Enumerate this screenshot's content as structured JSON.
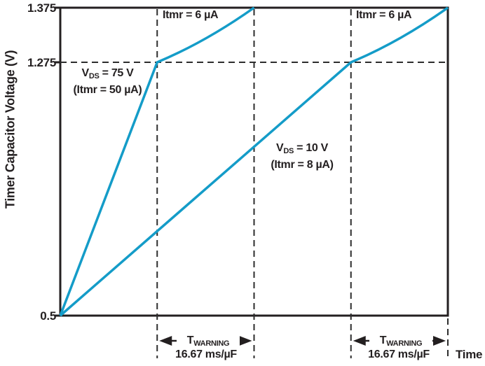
{
  "axes": {
    "y_title": "Timer Capacitor Voltage (V)",
    "x_title": "Time",
    "tick_top": "1.375",
    "tick_threshold": "1.275",
    "tick_bottom": "0.5"
  },
  "annotations": {
    "itmr6_left": "Itmr = 6 µA",
    "itmr6_right": "Itmr = 6 µA",
    "vds75": {
      "pre": "V",
      "sub": "DS",
      "post": " = 75 V",
      "line2": "(Itmr = 50 µA)"
    },
    "vds10": {
      "pre": "V",
      "sub": "DS",
      "post": " = 10 V",
      "line2": "(Itmr = 8 µA)"
    },
    "twarning_left": {
      "pre": "T",
      "sub": "WARNING",
      "rate": "16.67 ms/µF"
    },
    "twarning_right": {
      "pre": "T",
      "sub": "WARNING",
      "rate": "16.67 ms/µF"
    }
  },
  "colors": {
    "curve": "#149cc8",
    "axis": "#231f20",
    "dash": "#2d2d2d",
    "text": "#231f20",
    "background": "#ffffff"
  },
  "chart_data": {
    "type": "line",
    "title": "",
    "xlabel": "Time",
    "ylabel": "Timer Capacitor Voltage (V)",
    "x_unit": "divisions of 16.67 ms/µF",
    "xlim": [
      0,
      4
    ],
    "ylim": [
      0.5,
      1.375
    ],
    "y_ticks": [
      0.5,
      1.275,
      1.375
    ],
    "threshold_y": 1.275,
    "x_dashed_divisions": [
      {
        "div": 1,
        "from_top": true
      },
      {
        "div": 2,
        "from_top": true
      },
      {
        "div": 3,
        "from_top": true
      },
      {
        "div": 4,
        "from_top": false
      }
    ],
    "warning_intervals": [
      [
        1,
        2
      ],
      [
        3,
        4
      ]
    ],
    "series": [
      {
        "id": "vds75",
        "name": "VDS = 75 V (Itmr = 50 µA), then Itmr = 6 µA above 1.275 V",
        "points": [
          [
            0,
            0.5
          ],
          [
            1,
            1.275
          ],
          [
            2,
            1.375
          ]
        ]
      },
      {
        "id": "vds10",
        "name": "VDS = 10 V (Itmr = 8 µA), then Itmr = 6 µA above 1.275 V",
        "points": [
          [
            0,
            0.5
          ],
          [
            3,
            1.275
          ],
          [
            4,
            1.375
          ]
        ]
      }
    ],
    "legend": "none",
    "grid": "off"
  }
}
